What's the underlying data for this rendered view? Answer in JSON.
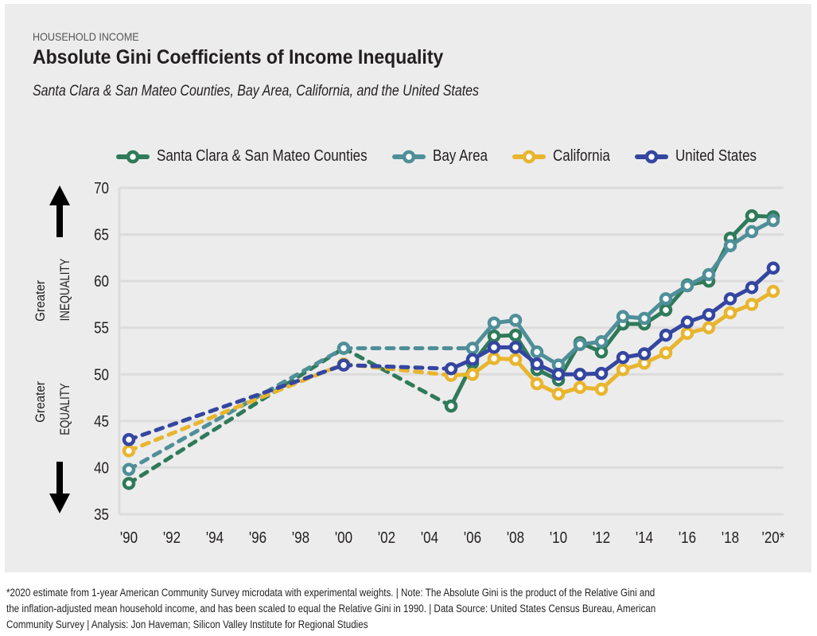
{
  "header": {
    "kicker": "HOUSEHOLD INCOME",
    "title": "Absolute Gini Coefficients of Income Inequality",
    "subtitle": "Santa Clara & San Mateo Counties, Bay Area, California, and the United States"
  },
  "side_labels": {
    "top_line1": "Greater",
    "top_line2": "INEQUALITY",
    "bottom_line1": "Greater",
    "bottom_line2": "EQUALITY"
  },
  "footnote": {
    "line1": "*2020 estimate from 1-year American Community Survey microdata with experimental weights. | Note: The Absolute Gini is the product of the Relative Gini and",
    "line2": "the inflation-adjusted mean household income, and has been scaled to equal the Relative Gini in 1990. | Data Source: United States Census Bureau, American",
    "line3": "Community Survey | Analysis: Jon Haveman; Silicon Valley Institute for Regional Studies"
  },
  "chart_data": {
    "type": "line",
    "title": "Absolute Gini Coefficients of Income Inequality",
    "subtitle": "Santa Clara & San Mateo Counties, Bay Area, California, and the United States",
    "xlabel": "",
    "ylabel": "",
    "ylim": [
      35,
      70
    ],
    "yticks": [
      35,
      40,
      45,
      50,
      55,
      60,
      65,
      70
    ],
    "xlim": [
      1990,
      2020
    ],
    "xticks": [
      1990,
      1992,
      1994,
      1996,
      1998,
      2000,
      2002,
      2004,
      2006,
      2008,
      2010,
      2012,
      2014,
      2016,
      2018,
      2020
    ],
    "xtick_labels": [
      "'90",
      "'92",
      "'94",
      "'96",
      "'98",
      "'00",
      "'02",
      "'04",
      "'06",
      "'08",
      "'10",
      "'12",
      "'14",
      "'16",
      "'18",
      "'20*"
    ],
    "grid": "horizontal",
    "legend_position": "top",
    "note": "Dashed segments connect non-consecutive years (gaps in data).",
    "series": [
      {
        "name": "Santa Clara & San Mateo Counties",
        "color": "#2f7a5a",
        "points": [
          [
            1990,
            38.3
          ],
          [
            2000,
            52.8
          ],
          [
            2005,
            46.6
          ],
          [
            2006,
            51.2
          ],
          [
            2007,
            54.1
          ],
          [
            2008,
            54.2
          ],
          [
            2009,
            50.5
          ],
          [
            2010,
            49.4
          ],
          [
            2011,
            53.4
          ],
          [
            2012,
            52.4
          ],
          [
            2013,
            55.4
          ],
          [
            2014,
            55.4
          ],
          [
            2015,
            56.9
          ],
          [
            2016,
            59.6
          ],
          [
            2017,
            60.0
          ],
          [
            2018,
            64.6
          ],
          [
            2019,
            67.0
          ],
          [
            2020,
            66.9
          ]
        ]
      },
      {
        "name": "Bay Area",
        "color": "#4f8f99",
        "points": [
          [
            1990,
            39.8
          ],
          [
            2000,
            52.8
          ],
          [
            2006,
            52.8
          ],
          [
            2007,
            55.5
          ],
          [
            2008,
            55.8
          ],
          [
            2009,
            52.4
          ],
          [
            2010,
            51.0
          ],
          [
            2011,
            53.2
          ],
          [
            2012,
            53.5
          ],
          [
            2013,
            56.2
          ],
          [
            2014,
            56.0
          ],
          [
            2015,
            58.1
          ],
          [
            2016,
            59.5
          ],
          [
            2017,
            60.7
          ],
          [
            2018,
            63.8
          ],
          [
            2019,
            65.3
          ],
          [
            2020,
            66.5
          ]
        ]
      },
      {
        "name": "California",
        "color": "#e8b52e",
        "points": [
          [
            1990,
            41.8
          ],
          [
            2000,
            51.1
          ],
          [
            2005,
            49.9
          ],
          [
            2006,
            50.0
          ],
          [
            2007,
            51.7
          ],
          [
            2008,
            51.6
          ],
          [
            2009,
            49.0
          ],
          [
            2010,
            47.9
          ],
          [
            2011,
            48.6
          ],
          [
            2012,
            48.4
          ],
          [
            2013,
            50.5
          ],
          [
            2014,
            51.2
          ],
          [
            2015,
            52.3
          ],
          [
            2016,
            54.4
          ],
          [
            2017,
            55.0
          ],
          [
            2018,
            56.6
          ],
          [
            2019,
            57.5
          ],
          [
            2020,
            58.9
          ]
        ]
      },
      {
        "name": "United States",
        "color": "#3446a0",
        "points": [
          [
            1990,
            43.0
          ],
          [
            2000,
            51.0
          ],
          [
            2005,
            50.6
          ],
          [
            2006,
            51.6
          ],
          [
            2007,
            52.9
          ],
          [
            2008,
            52.9
          ],
          [
            2009,
            51.1
          ],
          [
            2010,
            50.0
          ],
          [
            2011,
            50.0
          ],
          [
            2012,
            50.1
          ],
          [
            2013,
            51.8
          ],
          [
            2014,
            52.2
          ],
          [
            2015,
            54.2
          ],
          [
            2016,
            55.6
          ],
          [
            2017,
            56.4
          ],
          [
            2018,
            58.1
          ],
          [
            2019,
            59.3
          ],
          [
            2020,
            61.4
          ]
        ]
      }
    ]
  }
}
